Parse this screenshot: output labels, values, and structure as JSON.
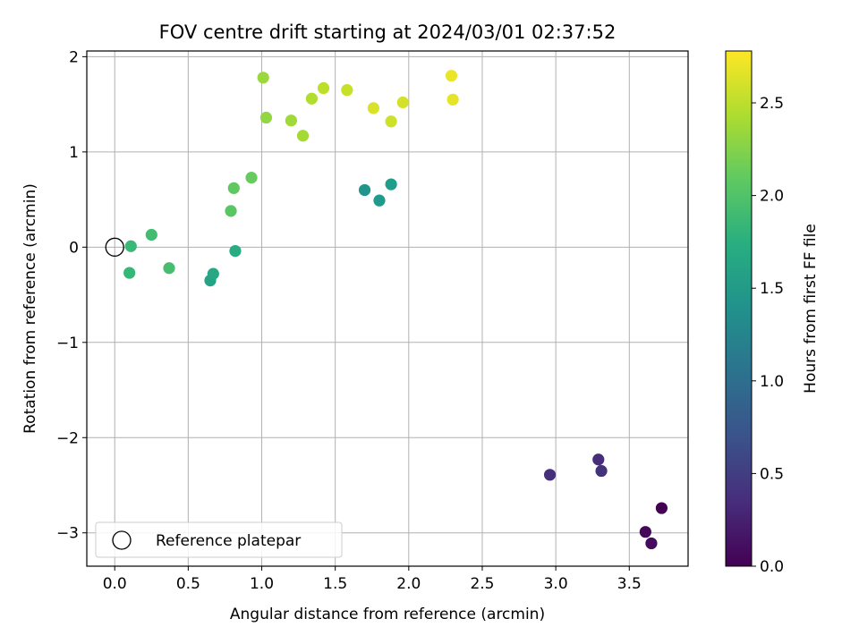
{
  "chart_data": {
    "type": "scatter",
    "title": "FOV centre drift starting at 2024/03/01 02:37:52",
    "xlabel": "Angular distance from reference (arcmin)",
    "ylabel": "Rotation from reference (arcmin)",
    "xlim": [
      -0.19,
      3.9
    ],
    "ylim": [
      -3.35,
      2.06
    ],
    "xticks": [
      0.0,
      0.5,
      1.0,
      1.5,
      2.0,
      2.5,
      3.0,
      3.5
    ],
    "xtick_labels": [
      "0.0",
      "0.5",
      "1.0",
      "1.5",
      "2.0",
      "2.5",
      "3.0",
      "3.5"
    ],
    "yticks": [
      -3,
      -2,
      -1,
      0,
      1,
      2
    ],
    "ytick_labels": [
      "−3",
      "−2",
      "−1",
      "0",
      "1",
      "2"
    ],
    "grid": true,
    "legend": {
      "placement": "lower-left",
      "entries": [
        "Reference platepar"
      ]
    },
    "reference_point": {
      "x": 0.0,
      "y": 0.0
    },
    "colorbar": {
      "label": "Hours from first FF file",
      "range": [
        0.0,
        2.78
      ],
      "ticks": [
        0.0,
        0.5,
        1.0,
        1.5,
        2.0,
        2.5
      ],
      "tick_labels": [
        "0.0",
        "0.5",
        "1.0",
        "1.5",
        "2.0",
        "2.5"
      ],
      "colormap": "viridis"
    },
    "series": [
      {
        "points": [
          {
            "x": 3.72,
            "y": -2.74,
            "c": 0.0
          },
          {
            "x": 3.61,
            "y": -2.99,
            "c": 0.05
          },
          {
            "x": 3.65,
            "y": -3.11,
            "c": 0.08
          },
          {
            "x": 2.96,
            "y": -2.39,
            "c": 0.38
          },
          {
            "x": 3.29,
            "y": -2.23,
            "c": 0.35
          },
          {
            "x": 3.31,
            "y": -2.35,
            "c": 0.4
          },
          {
            "x": 1.7,
            "y": 0.6,
            "c": 1.45
          },
          {
            "x": 1.8,
            "y": 0.49,
            "c": 1.5
          },
          {
            "x": 1.88,
            "y": 0.66,
            "c": 1.55
          },
          {
            "x": 0.65,
            "y": -0.35,
            "c": 1.62
          },
          {
            "x": 0.67,
            "y": -0.28,
            "c": 1.66
          },
          {
            "x": 0.82,
            "y": -0.04,
            "c": 1.7
          },
          {
            "x": 0.1,
            "y": -0.27,
            "c": 1.85
          },
          {
            "x": 0.11,
            "y": 0.01,
            "c": 1.88
          },
          {
            "x": 0.25,
            "y": 0.13,
            "c": 1.92
          },
          {
            "x": 0.37,
            "y": -0.22,
            "c": 1.95
          },
          {
            "x": 0.79,
            "y": 0.38,
            "c": 2.05
          },
          {
            "x": 0.81,
            "y": 0.62,
            "c": 2.08
          },
          {
            "x": 0.93,
            "y": 0.73,
            "c": 2.12
          },
          {
            "x": 1.03,
            "y": 1.36,
            "c": 2.32
          },
          {
            "x": 1.01,
            "y": 1.78,
            "c": 2.36
          },
          {
            "x": 1.2,
            "y": 1.33,
            "c": 2.38
          },
          {
            "x": 1.28,
            "y": 1.17,
            "c": 2.4
          },
          {
            "x": 1.34,
            "y": 1.56,
            "c": 2.45
          },
          {
            "x": 1.42,
            "y": 1.67,
            "c": 2.5
          },
          {
            "x": 1.58,
            "y": 1.65,
            "c": 2.55
          },
          {
            "x": 1.76,
            "y": 1.46,
            "c": 2.62
          },
          {
            "x": 1.88,
            "y": 1.32,
            "c": 2.58
          },
          {
            "x": 1.96,
            "y": 1.52,
            "c": 2.6
          },
          {
            "x": 2.29,
            "y": 1.8,
            "c": 2.7
          },
          {
            "x": 2.3,
            "y": 1.55,
            "c": 2.68
          }
        ]
      }
    ]
  }
}
